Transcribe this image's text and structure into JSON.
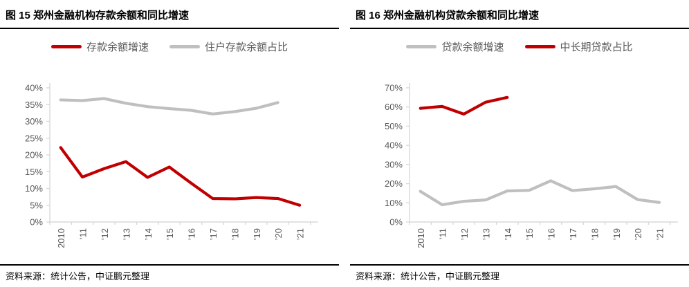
{
  "colors": {
    "red": "#c00000",
    "gray": "#bfbfbf",
    "axis_line": "#d9d9d9",
    "tick_text": "#595959",
    "title_text": "#000000"
  },
  "panels": [
    {
      "title": "图 15  郑州金融机构存款余额和同比增速",
      "legend": [
        {
          "label": "存款余额增速",
          "color": "#c00000"
        },
        {
          "label": "住户存款余额占比",
          "color": "#bfbfbf"
        }
      ],
      "source": "资料来源：统计公告，中证鹏元整理",
      "chart_data": {
        "type": "line",
        "title": "郑州金融机构存款余额和同比增速",
        "categories": [
          "2010",
          "’11",
          "’12",
          "’13",
          "’14",
          "’15",
          "’16",
          "’17",
          "’18",
          "’19",
          "’20",
          "’21"
        ],
        "series": [
          {
            "name": "存款余额增速",
            "color": "#c00000",
            "values": [
              22.2,
              13.4,
              15.9,
              18.0,
              13.3,
              16.4,
              11.6,
              7.0,
              6.9,
              7.3,
              7.0,
              5.0
            ]
          },
          {
            "name": "住户存款余额占比",
            "color": "#bfbfbf",
            "values": [
              36.4,
              36.2,
              36.8,
              35.4,
              34.4,
              33.8,
              33.3,
              32.2,
              32.9,
              33.9,
              35.6,
              null
            ]
          }
        ],
        "ylim": [
          0,
          40
        ],
        "ytick_step": 5,
        "ytick_suffix": "%",
        "grid": false,
        "legend_position": "top"
      }
    },
    {
      "title": "图 16  郑州金融机构贷款余额和同比增速",
      "legend": [
        {
          "label": "贷款余额增速",
          "color": "#bfbfbf"
        },
        {
          "label": "中长期贷款占比",
          "color": "#c00000"
        }
      ],
      "source": "资料来源：统计公告，中证鹏元整理",
      "chart_data": {
        "type": "line",
        "title": "郑州金融机构贷款余额和同比增速",
        "categories": [
          "2010",
          "’11",
          "’12",
          "’13",
          "’14",
          "’15",
          "’16",
          "’17",
          "’18",
          "’19",
          "’20",
          "’21"
        ],
        "series": [
          {
            "name": "贷款余额增速",
            "color": "#bfbfbf",
            "values": [
              16.0,
              9.0,
              10.8,
              11.5,
              16.2,
              16.5,
              21.5,
              16.4,
              17.3,
              18.5,
              11.7,
              10.2
            ]
          },
          {
            "name": "中长期贷款占比",
            "color": "#c00000",
            "values": [
              59.3,
              60.3,
              56.3,
              62.5,
              65.0,
              null,
              null,
              null,
              null,
              null,
              null,
              null
            ]
          }
        ],
        "ylim": [
          0,
          70
        ],
        "ytick_step": 10,
        "ytick_suffix": "%",
        "grid": false,
        "legend_position": "top"
      }
    }
  ]
}
